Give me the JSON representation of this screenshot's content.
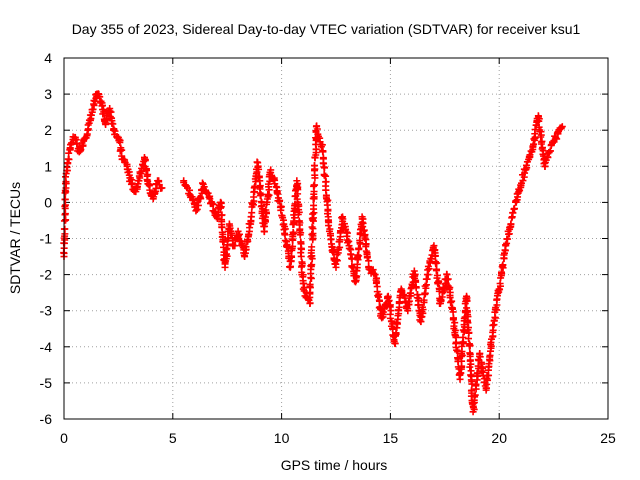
{
  "chart_data": {
    "type": "scatter",
    "title": "Day 355 of 2023, Sidereal Day-to-day VTEC variation (SDTVAR) for receiver ksu1",
    "xlabel": "GPS time / hours",
    "ylabel": "SDTVAR / TECUs",
    "xlim": [
      0,
      25
    ],
    "ylim": [
      -6,
      4
    ],
    "xticks": [
      0,
      5,
      10,
      15,
      20,
      25
    ],
    "yticks": [
      -6,
      -5,
      -4,
      -3,
      -2,
      -1,
      0,
      1,
      2,
      3,
      4
    ],
    "grid": true,
    "marker": "+",
    "color": "#ff0000",
    "series": [
      {
        "name": "ksu1",
        "x": [
          0.0,
          0.1,
          0.2,
          0.3,
          0.5,
          0.7,
          0.9,
          1.1,
          1.3,
          1.5,
          1.7,
          1.9,
          2.1,
          2.3,
          2.5,
          2.7,
          2.9,
          3.1,
          3.3,
          3.5,
          3.7,
          3.9,
          4.1,
          4.3,
          4.5,
          5.5,
          5.8,
          6.1,
          6.4,
          6.7,
          7.0,
          7.2,
          7.4,
          7.6,
          7.8,
          8.0,
          8.3,
          8.6,
          8.9,
          9.2,
          9.5,
          9.8,
          10.1,
          10.4,
          10.7,
          11.0,
          11.3,
          11.6,
          11.9,
          12.2,
          12.5,
          12.8,
          13.1,
          13.4,
          13.7,
          14.0,
          14.3,
          14.6,
          14.9,
          15.2,
          15.5,
          15.8,
          16.1,
          16.4,
          16.7,
          17.0,
          17.3,
          17.6,
          17.9,
          18.2,
          18.5,
          18.8,
          19.1,
          19.4,
          19.7,
          20.0,
          20.3,
          20.6,
          20.9,
          21.2,
          21.5,
          21.8,
          22.1,
          22.4,
          22.7,
          22.9
        ],
        "y": [
          -1.5,
          0.8,
          1.2,
          1.6,
          1.8,
          1.4,
          1.7,
          2.0,
          2.5,
          3.0,
          2.8,
          2.2,
          2.6,
          2.0,
          1.8,
          1.2,
          1.0,
          0.5,
          0.3,
          0.8,
          1.2,
          0.5,
          0.1,
          0.6,
          0.4,
          0.6,
          0.2,
          -0.2,
          0.5,
          0.1,
          -0.4,
          0.0,
          -1.8,
          -0.6,
          -1.2,
          -0.8,
          -1.5,
          -0.4,
          1.1,
          -0.8,
          0.9,
          0.3,
          -0.6,
          -1.8,
          0.6,
          -2.4,
          -2.8,
          2.1,
          1.4,
          -0.8,
          -1.8,
          -0.4,
          -1.2,
          -2.2,
          -0.4,
          -1.8,
          -2.0,
          -3.2,
          -2.6,
          -3.9,
          -2.4,
          -3.0,
          -1.9,
          -3.3,
          -2.0,
          -1.2,
          -2.8,
          -2.0,
          -3.2,
          -4.9,
          -2.6,
          -5.8,
          -4.2,
          -5.2,
          -3.6,
          -2.4,
          -1.2,
          -0.4,
          0.3,
          0.9,
          1.4,
          2.4,
          1.0,
          1.6,
          1.9,
          2.1
        ]
      }
    ]
  }
}
